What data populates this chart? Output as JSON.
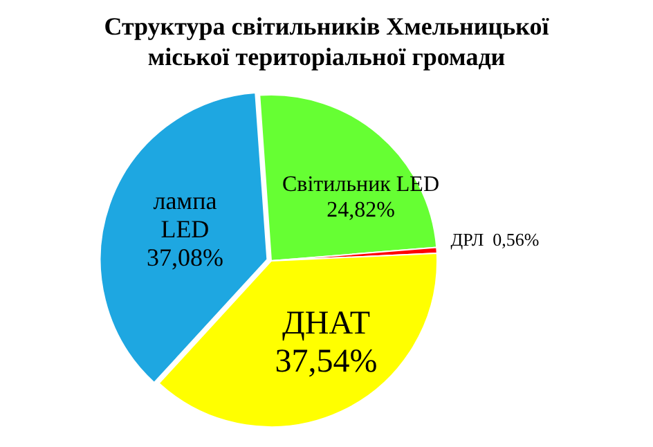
{
  "chart_data": {
    "type": "pie",
    "title": "Структура світильників  Хмельницької міської територіальної громади",
    "categories": [
      "Світильник LED",
      "ДРЛ",
      "ДНАТ",
      "лампа LED"
    ],
    "values": [
      24.82,
      0.56,
      37.54,
      37.08
    ],
    "colors": [
      "#66ff33",
      "#ff0000",
      "#ffff00",
      "#1ea7e1"
    ],
    "value_labels": [
      "24,82%",
      "0,56%",
      "37,54%",
      "37,08%"
    ],
    "legend": false
  }
}
